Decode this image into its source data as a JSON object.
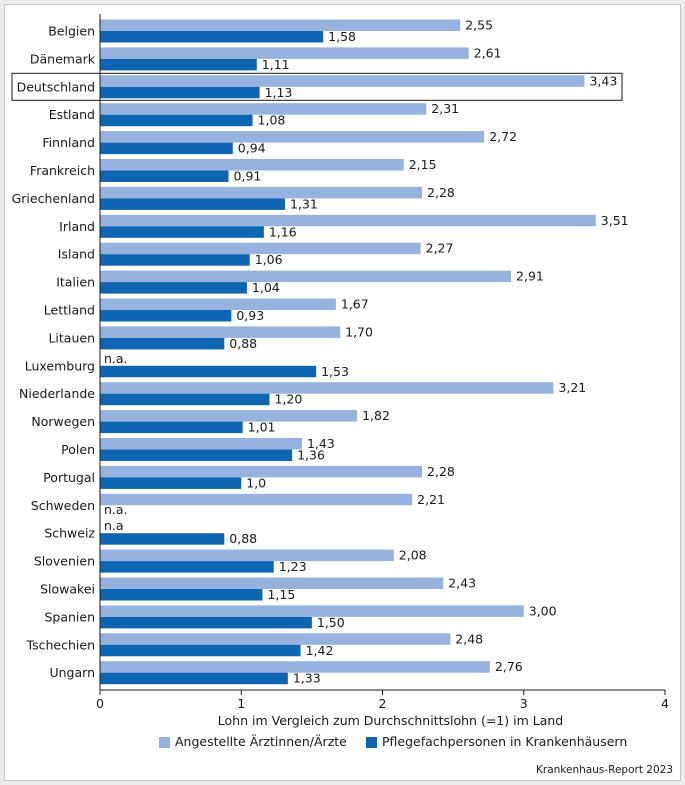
{
  "chart_data": {
    "type": "bar",
    "orientation": "horizontal",
    "categories": [
      "Belgien",
      "Dänemark",
      "Deutschland",
      "Estland",
      "Finnland",
      "Frankreich",
      "Griechenland",
      "Irland",
      "Island",
      "Italien",
      "Lettland",
      "Litauen",
      "Luxemburg",
      "Niederlande",
      "Norwegen",
      "Polen",
      "Portugal",
      "Schweden",
      "Schweiz",
      "Slovenien",
      "Slowakei",
      "Spanien",
      "Tschechien",
      "Ungarn"
    ],
    "highlighted_category": "Deutschland",
    "series": [
      {
        "name": "Angestellte Ärztinnen/Ärzte",
        "color": "#95b3de",
        "values": [
          2.55,
          2.61,
          3.43,
          2.31,
          2.72,
          2.15,
          2.28,
          3.51,
          2.27,
          2.91,
          1.67,
          1.7,
          null,
          3.21,
          1.82,
          1.43,
          2.28,
          2.21,
          null,
          2.08,
          2.43,
          3.0,
          2.48,
          2.76
        ],
        "labels": [
          "2,55",
          "2,61",
          "3,43",
          "2,31",
          "2,72",
          "2,15",
          "2,28",
          "3,51",
          "2,27",
          "2,91",
          "1,67",
          "1,70",
          "n.a.",
          "3,21",
          "1,82",
          "1,43",
          "2,28",
          "2,21",
          "n.a",
          "2,08",
          "2,43",
          "3,00",
          "2,48",
          "2,76"
        ]
      },
      {
        "name": "Pflegefachpersonen in Krankenhäusern",
        "color": "#0e66b3",
        "values": [
          1.58,
          1.11,
          1.13,
          1.08,
          0.94,
          0.91,
          1.31,
          1.16,
          1.06,
          1.04,
          0.93,
          0.88,
          1.53,
          1.2,
          1.01,
          1.36,
          1.0,
          null,
          0.88,
          1.23,
          1.15,
          1.5,
          1.42,
          1.33
        ],
        "labels": [
          "1,58",
          "1,11",
          "1,13",
          "1,08",
          "0,94",
          "0,91",
          "1,31",
          "1,16",
          "1,06",
          "1,04",
          "0,93",
          "0,88",
          "1,53",
          "1,20",
          "1,01",
          "1,36",
          "1,0",
          "n.a.",
          "0,88",
          "1,23",
          "1,15",
          "1,50",
          "1,42",
          "1,33"
        ]
      }
    ],
    "xlabel": "Lohn im Vergleich zum Durchschnittslohn (=1) im Land",
    "xlim": [
      0,
      4
    ],
    "xticks": [
      0,
      1,
      2,
      3,
      4
    ],
    "xtick_labels": [
      "0",
      "1",
      "2",
      "3",
      "4"
    ],
    "grid": false,
    "legend_position": "bottom",
    "source": "Krankenhaus-Report 2023"
  }
}
